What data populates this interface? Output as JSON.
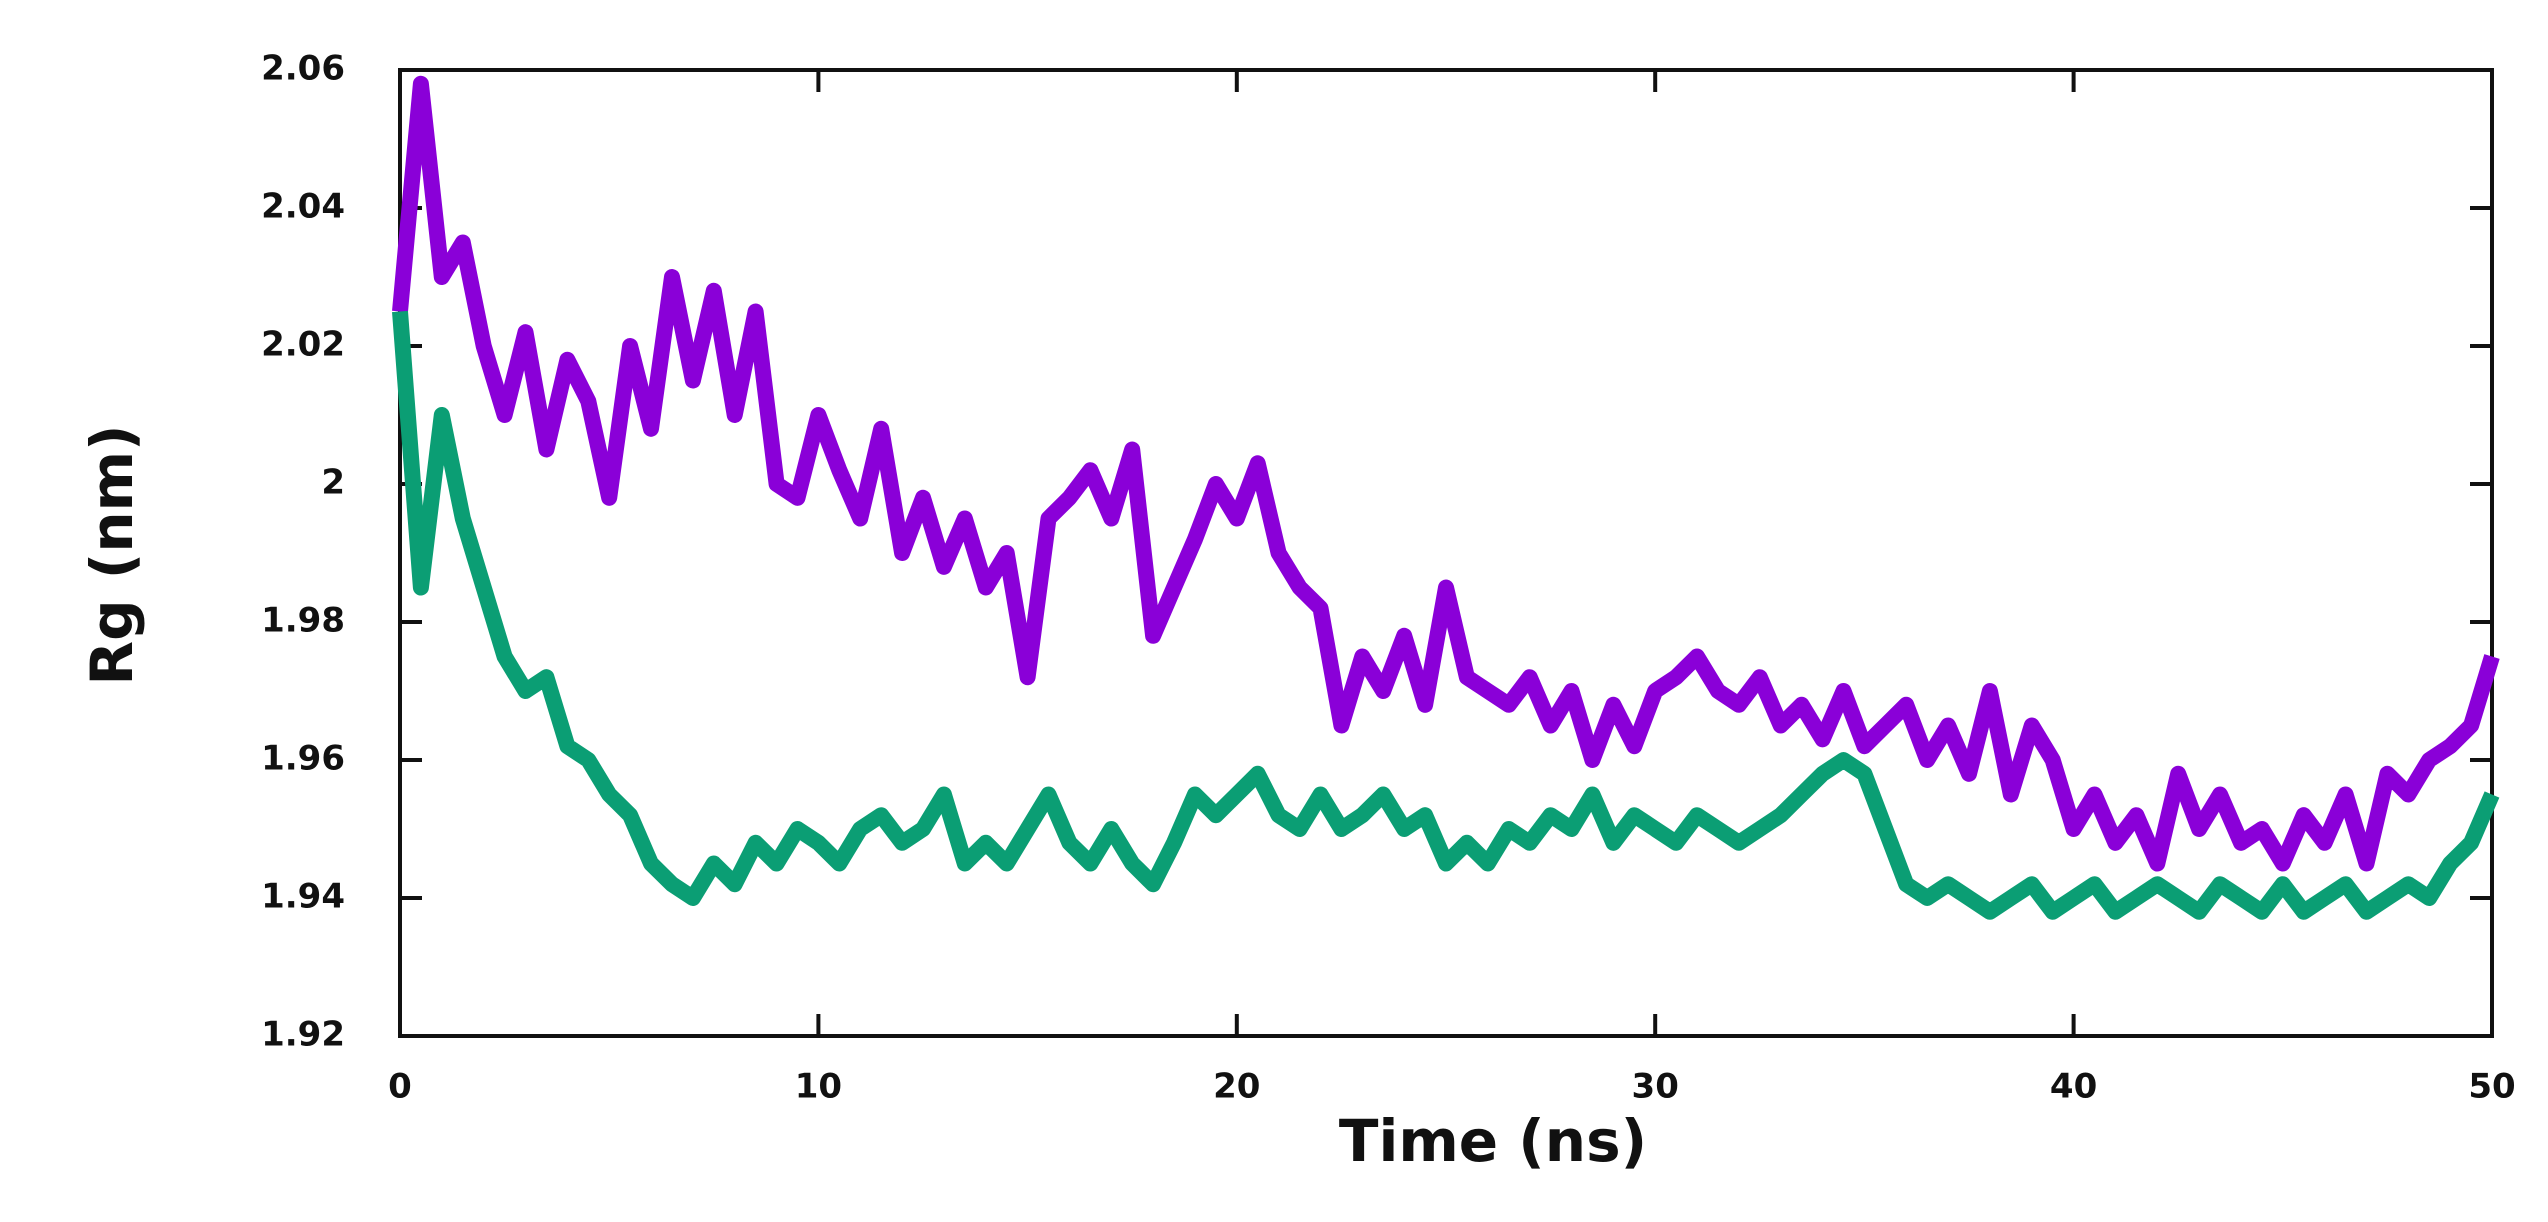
{
  "chart_data": {
    "type": "line",
    "xlabel": "Time (ns)",
    "ylabel": "Rg (nm)",
    "x": [
      0,
      0.5,
      1,
      1.5,
      2,
      2.5,
      3,
      3.5,
      4,
      4.5,
      5,
      5.5,
      6,
      6.5,
      7,
      7.5,
      8,
      8.5,
      9,
      9.5,
      10,
      10.5,
      11,
      11.5,
      12,
      12.5,
      13,
      13.5,
      14,
      14.5,
      15,
      15.5,
      16,
      16.5,
      17,
      17.5,
      18,
      18.5,
      19,
      19.5,
      20,
      20.5,
      21,
      21.5,
      22,
      22.5,
      23,
      23.5,
      24,
      24.5,
      25,
      25.5,
      26,
      26.5,
      27,
      27.5,
      28,
      28.5,
      29,
      29.5,
      30,
      30.5,
      31,
      31.5,
      32,
      32.5,
      33,
      33.5,
      34,
      34.5,
      35,
      35.5,
      36,
      36.5,
      37,
      37.5,
      38,
      38.5,
      39,
      39.5,
      40,
      40.5,
      41,
      41.5,
      42,
      42.5,
      43,
      43.5,
      44,
      44.5,
      45,
      45.5,
      46,
      46.5,
      47,
      47.5,
      48,
      48.5,
      49,
      49.5,
      50
    ],
    "series": [
      {
        "color": "#8a00d8",
        "values": [
          2.025,
          2.058,
          2.03,
          2.035,
          2.02,
          2.01,
          2.022,
          2.005,
          2.018,
          2.012,
          1.998,
          2.02,
          2.008,
          2.03,
          2.015,
          2.028,
          2.01,
          2.025,
          2.0,
          1.998,
          2.01,
          2.002,
          1.995,
          2.008,
          1.99,
          1.998,
          1.988,
          1.995,
          1.985,
          1.99,
          1.972,
          1.995,
          1.998,
          2.002,
          1.995,
          2.005,
          1.978,
          1.985,
          1.992,
          2.0,
          1.995,
          2.003,
          1.99,
          1.985,
          1.982,
          1.965,
          1.975,
          1.97,
          1.978,
          1.968,
          1.985,
          1.972,
          1.97,
          1.968,
          1.972,
          1.965,
          1.97,
          1.96,
          1.968,
          1.962,
          1.97,
          1.972,
          1.975,
          1.97,
          1.968,
          1.972,
          1.965,
          1.968,
          1.963,
          1.97,
          1.962,
          1.965,
          1.968,
          1.96,
          1.965,
          1.958,
          1.97,
          1.955,
          1.965,
          1.96,
          1.95,
          1.955,
          1.948,
          1.952,
          1.945,
          1.958,
          1.95,
          1.955,
          1.948,
          1.95,
          1.945,
          1.952,
          1.948,
          1.955,
          1.945,
          1.958,
          1.955,
          1.96,
          1.962,
          1.965,
          1.975
        ]
      },
      {
        "color": "#0b9e74",
        "values": [
          2.025,
          1.985,
          2.01,
          1.995,
          1.985,
          1.975,
          1.97,
          1.972,
          1.962,
          1.96,
          1.955,
          1.952,
          1.945,
          1.942,
          1.94,
          1.945,
          1.942,
          1.948,
          1.945,
          1.95,
          1.948,
          1.945,
          1.95,
          1.952,
          1.948,
          1.95,
          1.955,
          1.945,
          1.948,
          1.945,
          1.95,
          1.955,
          1.948,
          1.945,
          1.95,
          1.945,
          1.942,
          1.948,
          1.955,
          1.952,
          1.955,
          1.958,
          1.952,
          1.95,
          1.955,
          1.95,
          1.952,
          1.955,
          1.95,
          1.952,
          1.945,
          1.948,
          1.945,
          1.95,
          1.948,
          1.952,
          1.95,
          1.955,
          1.948,
          1.952,
          1.95,
          1.948,
          1.952,
          1.95,
          1.948,
          1.95,
          1.952,
          1.955,
          1.958,
          1.96,
          1.958,
          1.95,
          1.942,
          1.94,
          1.942,
          1.94,
          1.938,
          1.94,
          1.942,
          1.938,
          1.94,
          1.942,
          1.938,
          1.94,
          1.942,
          1.94,
          1.938,
          1.942,
          1.94,
          1.938,
          1.942,
          1.938,
          1.94,
          1.942,
          1.938,
          1.94,
          1.942,
          1.94,
          1.945,
          1.948,
          1.955
        ]
      }
    ],
    "xlim": [
      0,
      50
    ],
    "xticks": [
      0,
      10,
      20,
      30,
      40,
      50
    ],
    "ylim": [
      1.92,
      2.06
    ],
    "yticks": [
      1.92,
      1.94,
      1.96,
      1.98,
      2,
      2.02,
      2.04,
      2.06
    ]
  }
}
